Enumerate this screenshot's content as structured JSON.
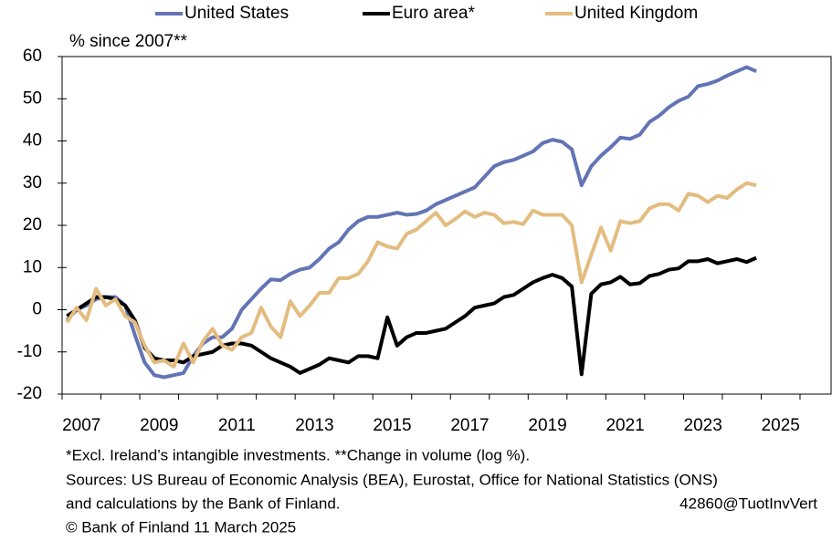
{
  "chart_data": {
    "type": "line",
    "ylabel": "% since 2007**",
    "x": [
      2007.125,
      2007.375,
      2007.625,
      2007.875,
      2008.125,
      2008.375,
      2008.625,
      2008.875,
      2009.125,
      2009.375,
      2009.625,
      2009.875,
      2010.125,
      2010.375,
      2010.625,
      2010.875,
      2011.125,
      2011.375,
      2011.625,
      2011.875,
      2012.125,
      2012.375,
      2012.625,
      2012.875,
      2013.125,
      2013.375,
      2013.625,
      2013.875,
      2014.125,
      2014.375,
      2014.625,
      2014.875,
      2015.125,
      2015.375,
      2015.625,
      2015.875,
      2016.125,
      2016.375,
      2016.625,
      2016.875,
      2017.125,
      2017.375,
      2017.625,
      2017.875,
      2018.125,
      2018.375,
      2018.625,
      2018.875,
      2019.125,
      2019.375,
      2019.625,
      2019.875,
      2020.125,
      2020.375,
      2020.625,
      2020.875,
      2021.125,
      2021.375,
      2021.625,
      2021.875,
      2022.125,
      2022.375,
      2022.625,
      2022.875,
      2023.125,
      2023.375,
      2023.625,
      2023.875,
      2024.125,
      2024.375,
      2024.625,
      2024.875
    ],
    "series": [
      {
        "name": "United States",
        "color": "#6374b6",
        "values": [
          -2.5,
          0,
          1,
          2.5,
          3,
          3,
          1,
          -6,
          -12.5,
          -15.5,
          -16,
          -15.5,
          -15,
          -11,
          -8,
          -6.5,
          -6.5,
          -4.5,
          0,
          2.5,
          5,
          7.2,
          7,
          8.5,
          9.5,
          10,
          12,
          14.5,
          16,
          19,
          21,
          22,
          22,
          22.5,
          23,
          22.5,
          22.7,
          23.5,
          25,
          26,
          27,
          28,
          29,
          31.5,
          34,
          35,
          35.5,
          36.5,
          37.5,
          39.5,
          40.3,
          39.8,
          38,
          29.5,
          34,
          36.5,
          38.5,
          40.8,
          40.5,
          41.5,
          44.5,
          46,
          48,
          49.5,
          50.5,
          53,
          53.5,
          54.3,
          55.5,
          56.5,
          57.5,
          56.5
        ]
      },
      {
        "name": "Euro area*",
        "color": "#000000",
        "values": [
          -1.5,
          0,
          1.5,
          3,
          3,
          2.5,
          1,
          -2.5,
          -9,
          -11.5,
          -12,
          -12,
          -12.5,
          -11,
          -10.5,
          -10,
          -8.5,
          -8,
          -8,
          -8.5,
          -10,
          -11.5,
          -12.5,
          -13.5,
          -15,
          -14,
          -13,
          -11.5,
          -12,
          -12.5,
          -11,
          -11,
          -11.5,
          -1.8,
          -8.5,
          -6.5,
          -5.5,
          -5.5,
          -5,
          -4.5,
          -3,
          -1.5,
          0.5,
          1,
          1.5,
          3,
          3.5,
          5,
          6.5,
          7.5,
          8.3,
          7.5,
          5.5,
          -15.3,
          3.8,
          6,
          6.5,
          7.8,
          6,
          6.3,
          8,
          8.5,
          9.5,
          9.8,
          11.5,
          11.5,
          12,
          11,
          11.5,
          12,
          11.3,
          12.3
        ]
      },
      {
        "name": "United Kingdom",
        "color": "#e3bc80",
        "values": [
          -3,
          0.5,
          -2.5,
          5,
          1,
          2.5,
          -1.5,
          -3,
          -8.5,
          -12.5,
          -12,
          -13.5,
          -8,
          -12.5,
          -7.5,
          -4.5,
          -8.5,
          -9.5,
          -6.5,
          -5.5,
          0.5,
          -4,
          -6.5,
          2,
          -1.5,
          1,
          4,
          4,
          7.5,
          7.5,
          8.5,
          11.5,
          16,
          15,
          14.5,
          18,
          19,
          21,
          23,
          20,
          21.5,
          23.3,
          22,
          23,
          22.5,
          20.5,
          20.8,
          20.3,
          23.5,
          22.5,
          22.5,
          22.5,
          20,
          6.5,
          13,
          19.5,
          14,
          21,
          20.5,
          21,
          24,
          25,
          25,
          23.5,
          27.5,
          27,
          25.5,
          27,
          26.5,
          28.5,
          30,
          29.5
        ]
      }
    ],
    "xlim": [
      2007,
      2026.8
    ],
    "xticks": [
      2007,
      2009,
      2011,
      2013,
      2015,
      2017,
      2019,
      2021,
      2023,
      2025
    ],
    "ylim": [
      -20,
      60
    ],
    "yticks": [
      -20,
      -10,
      0,
      10,
      20,
      30,
      40,
      50,
      60
    ],
    "grid": false,
    "legend": "top",
    "notes": [
      "*Excl. Ireland’s intangible investments. **Change in volume (log %).",
      "Sources: US Bureau of Economic Analysis (BEA), Eurostat, Office for National Statistics (ONS)",
      "and calculations by the Bank of Finland.",
      "© Bank of Finland 11 March 2025"
    ],
    "code": "42860@TuotInvVert"
  }
}
